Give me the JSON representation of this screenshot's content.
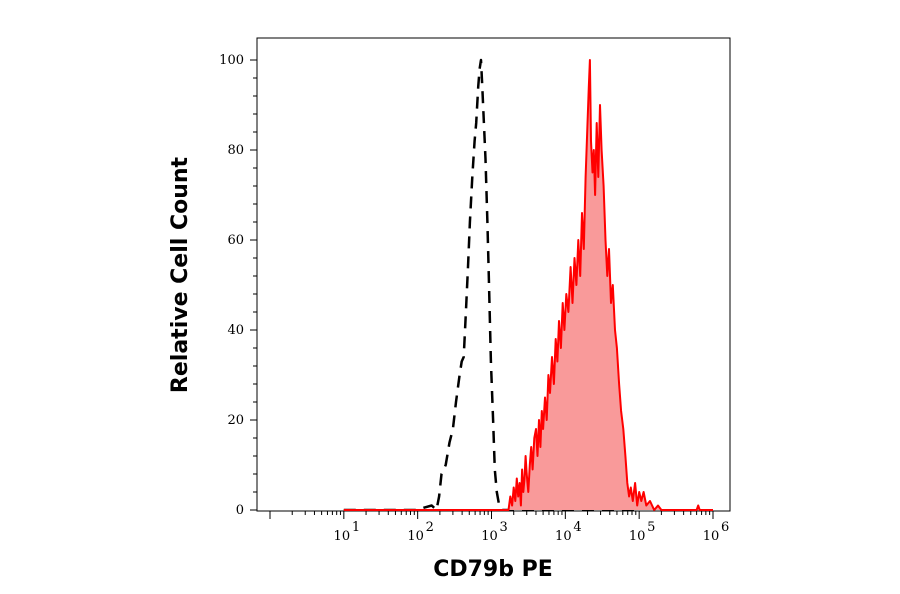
{
  "chart_data": {
    "type": "area",
    "xlabel": "CD79b PE",
    "ylabel": "Relative Cell Count",
    "x_scale": "log",
    "xlim": [
      1,
      1000000
    ],
    "ylim": [
      0,
      100
    ],
    "y_ticks": [
      "0",
      "20",
      "40",
      "60",
      "80",
      "100"
    ],
    "x_ticks": [
      {
        "base": "10",
        "exp": "1",
        "value": 10
      },
      {
        "base": "10",
        "exp": "2",
        "value": 100
      },
      {
        "base": "10",
        "exp": "3",
        "value": 1000
      },
      {
        "base": "10",
        "exp": "4",
        "value": 10000
      },
      {
        "base": "10",
        "exp": "5",
        "value": 100000
      },
      {
        "base": "10",
        "exp": "6",
        "value": 1000000
      }
    ],
    "series": [
      {
        "style": "dashed-black",
        "color": "#000000",
        "points": [
          [
            10,
            0
          ],
          [
            100,
            0
          ],
          [
            120,
            0.5
          ],
          [
            155,
            1
          ],
          [
            180,
            0
          ],
          [
            195,
            3
          ],
          [
            210,
            8
          ],
          [
            240,
            10
          ],
          [
            270,
            15
          ],
          [
            300,
            18
          ],
          [
            330,
            24
          ],
          [
            370,
            30
          ],
          [
            395,
            33
          ],
          [
            420,
            34
          ],
          [
            450,
            44
          ],
          [
            480,
            54
          ],
          [
            510,
            64
          ],
          [
            550,
            74
          ],
          [
            590,
            82
          ],
          [
            620,
            86
          ],
          [
            660,
            94
          ],
          [
            690,
            98
          ],
          [
            720,
            100
          ],
          [
            750,
            94
          ],
          [
            780,
            88
          ],
          [
            830,
            78
          ],
          [
            880,
            64
          ],
          [
            920,
            52
          ],
          [
            980,
            33
          ],
          [
            1050,
            20
          ],
          [
            1110,
            9
          ],
          [
            1180,
            4
          ],
          [
            1270,
            1
          ],
          [
            1400,
            0
          ],
          [
            100000,
            0
          ]
        ]
      },
      {
        "style": "filled-red",
        "color": "#ff0000",
        "fill": "#f99a9a",
        "points": [
          [
            10,
            0
          ],
          [
            1000,
            0
          ],
          [
            1700,
            0
          ],
          [
            1800,
            3
          ],
          [
            1900,
            1
          ],
          [
            2000,
            5
          ],
          [
            2100,
            2
          ],
          [
            2200,
            7
          ],
          [
            2300,
            3
          ],
          [
            2400,
            6
          ],
          [
            2500,
            1
          ],
          [
            2600,
            9
          ],
          [
            2700,
            4
          ],
          [
            2800,
            7
          ],
          [
            2900,
            12
          ],
          [
            3000,
            8
          ],
          [
            3150,
            4
          ],
          [
            3300,
            10
          ],
          [
            3450,
            14
          ],
          [
            3600,
            9
          ],
          [
            3800,
            16
          ],
          [
            4000,
            18
          ],
          [
            4200,
            12
          ],
          [
            4400,
            20
          ],
          [
            4600,
            14
          ],
          [
            4800,
            22
          ],
          [
            5000,
            18
          ],
          [
            5300,
            25
          ],
          [
            5600,
            20
          ],
          [
            5900,
            30
          ],
          [
            6200,
            26
          ],
          [
            6600,
            34
          ],
          [
            7000,
            28
          ],
          [
            7400,
            38
          ],
          [
            7800,
            33
          ],
          [
            8200,
            42
          ],
          [
            8700,
            36
          ],
          [
            9200,
            46
          ],
          [
            9700,
            40
          ],
          [
            10300,
            48
          ],
          [
            11000,
            44
          ],
          [
            11800,
            54
          ],
          [
            12500,
            46
          ],
          [
            13300,
            56
          ],
          [
            14100,
            50
          ],
          [
            15000,
            60
          ],
          [
            15900,
            52
          ],
          [
            16800,
            66
          ],
          [
            17800,
            58
          ],
          [
            18800,
            74
          ],
          [
            19800,
            84
          ],
          [
            20800,
            94
          ],
          [
            21500,
            100
          ],
          [
            22300,
            82
          ],
          [
            23300,
            75
          ],
          [
            24300,
            80
          ],
          [
            25300,
            70
          ],
          [
            26600,
            86
          ],
          [
            28000,
            74
          ],
          [
            29500,
            90
          ],
          [
            31000,
            80
          ],
          [
            33000,
            72
          ],
          [
            35000,
            60
          ],
          [
            37000,
            52
          ],
          [
            39000,
            58
          ],
          [
            41500,
            46
          ],
          [
            44000,
            50
          ],
          [
            47000,
            40
          ],
          [
            50000,
            36
          ],
          [
            53500,
            28
          ],
          [
            57000,
            22
          ],
          [
            61000,
            18
          ],
          [
            65000,
            12
          ],
          [
            69000,
            6
          ],
          [
            73000,
            3
          ],
          [
            77000,
            5
          ],
          [
            82000,
            2
          ],
          [
            88000,
            6
          ],
          [
            94000,
            1
          ],
          [
            100000,
            4
          ],
          [
            107000,
            2
          ],
          [
            115000,
            4
          ],
          [
            125000,
            1
          ],
          [
            140000,
            2
          ],
          [
            160000,
            0
          ],
          [
            180000,
            1
          ],
          [
            200000,
            0
          ],
          [
            600000,
            0
          ],
          [
            630000,
            1
          ],
          [
            660000,
            0
          ],
          [
            1000000,
            0
          ]
        ]
      }
    ]
  }
}
